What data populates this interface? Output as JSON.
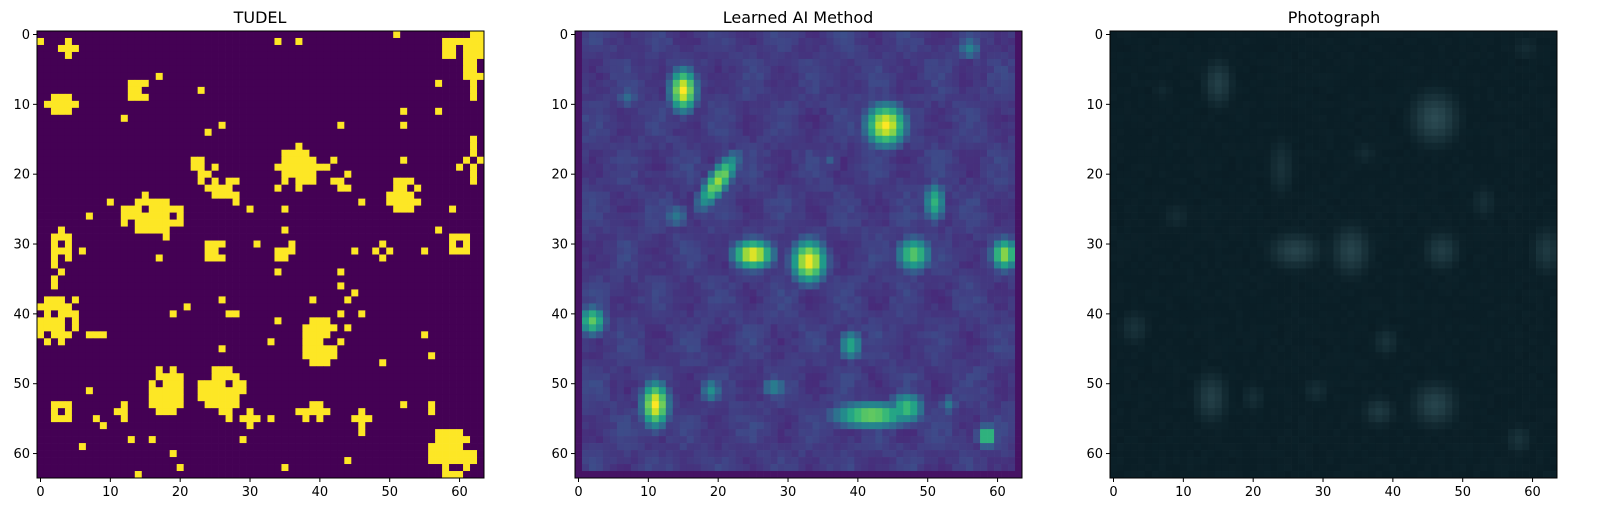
{
  "chart_data": [
    {
      "type": "heatmap",
      "title": "TUDEL",
      "colormap": "viridis-binary",
      "x_ticks": [
        0,
        10,
        20,
        30,
        40,
        50,
        60
      ],
      "y_ticks": [
        0,
        10,
        20,
        30,
        40,
        50,
        60
      ],
      "xlim": [
        -0.5,
        63.5
      ],
      "ylim": [
        63.5,
        -0.5
      ],
      "grid_size": [
        64,
        64
      ],
      "colors": {
        "low": "#440154",
        "high": "#fde725"
      },
      "blobs": [
        [
          14,
          8,
          1.6,
          1.6,
          0
        ],
        [
          25,
          21,
          4.5,
          1.6,
          -0.8
        ],
        [
          16,
          26,
          4.5,
          2.2,
          0
        ],
        [
          37,
          19,
          3.0,
          3.0,
          0
        ],
        [
          43,
          21,
          1.6,
          1.4,
          0
        ],
        [
          52,
          23,
          2.6,
          2.4,
          0
        ],
        [
          40,
          44,
          3.0,
          3.4,
          0
        ],
        [
          26,
          51,
          3.2,
          3.2,
          0
        ],
        [
          18,
          51,
          2.4,
          3.4,
          0
        ],
        [
          12,
          54,
          1.2,
          1.2,
          0
        ],
        [
          39,
          54,
          2.4,
          1.4,
          0
        ],
        [
          59,
          60,
          3.4,
          3.4,
          0
        ],
        [
          2,
          41,
          3.2,
          3.2,
          0
        ],
        [
          3,
          54,
          1.6,
          1.6,
          0
        ],
        [
          3,
          31,
          1.4,
          3.0,
          0
        ],
        [
          25,
          31,
          1.5,
          1.5,
          0
        ],
        [
          35,
          31,
          1.4,
          1.4,
          0
        ],
        [
          49,
          31,
          1.0,
          1.0,
          0
        ],
        [
          62,
          3,
          1.2,
          6.0,
          0
        ],
        [
          62,
          18,
          1.0,
          3.0,
          0
        ],
        [
          59,
          2,
          1.8,
          1.2,
          0
        ],
        [
          4,
          2,
          1.2,
          1.0,
          0
        ],
        [
          3,
          10,
          2.0,
          1.6,
          0
        ],
        [
          60,
          30,
          1.6,
          1.6,
          0
        ],
        [
          30,
          55,
          1.0,
          1.0,
          0
        ],
        [
          46,
          55,
          1.0,
          1.0,
          0
        ]
      ]
    },
    {
      "type": "heatmap",
      "title": "Learned AI Method",
      "colormap": "viridis",
      "x_ticks": [
        0,
        10,
        20,
        30,
        40,
        50,
        60
      ],
      "y_ticks": [
        0,
        10,
        20,
        30,
        40,
        50,
        60
      ],
      "xlim": [
        -0.5,
        63.5
      ],
      "ylim": [
        63.5,
        -0.5
      ],
      "grid_size": [
        64,
        64
      ],
      "base_level": 0.15,
      "blobs": [
        [
          15,
          8,
          2.0,
          3.2,
          1.0
        ],
        [
          44,
          13,
          3.0,
          3.2,
          1.0
        ],
        [
          20,
          21,
          1.6,
          4.8,
          0.85
        ],
        [
          25,
          31.5,
          3.0,
          2.2,
          1.0
        ],
        [
          33,
          32.5,
          2.6,
          3.2,
          1.0
        ],
        [
          48,
          31.5,
          2.6,
          2.6,
          0.75
        ],
        [
          61,
          31.5,
          2.0,
          2.4,
          0.85
        ],
        [
          51,
          24,
          1.6,
          3.0,
          0.65
        ],
        [
          11,
          53,
          2.0,
          3.4,
          1.0
        ],
        [
          2,
          41,
          2.0,
          2.2,
          0.75
        ],
        [
          39,
          44.5,
          1.8,
          2.4,
          0.6
        ],
        [
          42,
          54.5,
          6.0,
          2.0,
          0.8
        ],
        [
          47,
          53.5,
          2.6,
          2.4,
          0.7
        ],
        [
          58.5,
          57.5,
          1.4,
          1.6,
          0.8
        ],
        [
          19,
          51,
          1.6,
          2.0,
          0.5
        ],
        [
          28,
          50.5,
          2.0,
          1.8,
          0.45
        ],
        [
          7,
          9,
          1.8,
          1.8,
          0.35
        ],
        [
          56,
          2,
          1.8,
          1.8,
          0.45
        ],
        [
          14,
          26,
          2.0,
          2.0,
          0.4
        ],
        [
          36,
          18,
          1.4,
          1.4,
          0.3
        ],
        [
          53,
          53,
          1.4,
          1.6,
          0.4
        ]
      ]
    },
    {
      "type": "heatmap",
      "title": "Photograph",
      "colormap": "dark-teal",
      "x_ticks": [
        0,
        10,
        20,
        30,
        40,
        50,
        60
      ],
      "y_ticks": [
        0,
        10,
        20,
        30,
        40,
        50,
        60
      ],
      "xlim": [
        -0.5,
        63.5
      ],
      "ylim": [
        63.5,
        -0.5
      ],
      "grid_size": [
        64,
        64
      ],
      "colors": {
        "low": "#071a22",
        "high": "#3a5e66"
      },
      "blobs": [
        [
          15,
          7,
          2.0,
          3.2,
          0.55
        ],
        [
          46,
          12,
          3.2,
          3.6,
          0.7
        ],
        [
          26,
          31,
          3.4,
          2.4,
          0.6
        ],
        [
          34,
          31,
          2.6,
          3.4,
          0.6
        ],
        [
          47,
          31,
          2.4,
          2.6,
          0.5
        ],
        [
          62,
          31,
          2.0,
          3.2,
          0.45
        ],
        [
          24,
          19,
          1.8,
          4.0,
          0.35
        ],
        [
          14,
          52,
          2.2,
          3.4,
          0.55
        ],
        [
          46,
          53,
          3.0,
          3.0,
          0.6
        ],
        [
          38,
          54,
          2.2,
          2.0,
          0.45
        ],
        [
          39,
          44,
          1.8,
          2.0,
          0.35
        ],
        [
          3,
          42,
          2.0,
          2.4,
          0.35
        ],
        [
          9,
          26,
          2.0,
          2.0,
          0.25
        ],
        [
          36,
          17,
          1.6,
          1.8,
          0.25
        ],
        [
          53,
          24,
          1.6,
          2.4,
          0.3
        ],
        [
          20,
          52,
          1.6,
          2.0,
          0.3
        ],
        [
          29,
          51,
          1.8,
          1.8,
          0.3
        ],
        [
          58,
          58,
          1.8,
          2.0,
          0.35
        ],
        [
          7,
          8,
          1.6,
          1.6,
          0.2
        ],
        [
          59,
          2,
          2.0,
          1.6,
          0.25
        ]
      ]
    }
  ]
}
